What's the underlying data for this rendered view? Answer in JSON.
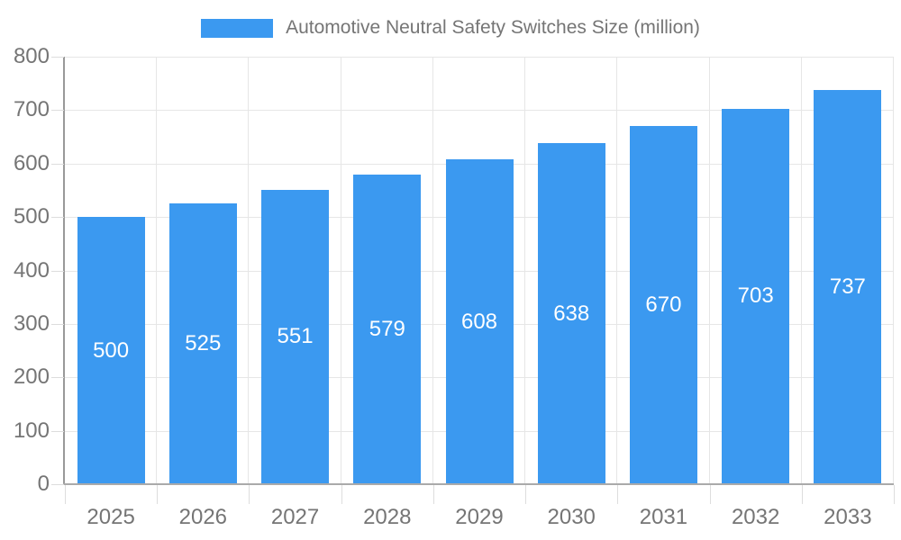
{
  "legend": {
    "label": "Automotive Neutral Safety Switches Size (million)"
  },
  "colors": {
    "bar": "#3b99f0",
    "legend_swatch": "#3b99f0",
    "axis_text": "#757575",
    "value_label_text": "#ffffff",
    "gridline": "#e6e6e6",
    "axis_line": "#999999"
  },
  "chart_data": {
    "type": "bar",
    "title": "Automotive Neutral Safety Switches Size (million)",
    "categories": [
      "2025",
      "2026",
      "2027",
      "2028",
      "2029",
      "2030",
      "2031",
      "2032",
      "2033"
    ],
    "values": [
      500,
      525,
      551,
      579,
      608,
      638,
      670,
      703,
      737
    ],
    "xlabel": "",
    "ylabel": "",
    "ylim": [
      0,
      800
    ],
    "ytick_step": 100,
    "ytick_labels": [
      "0",
      "100",
      "200",
      "300",
      "400",
      "500",
      "600",
      "700",
      "800"
    ],
    "grid": true,
    "legend_position": "top-center",
    "value_labels": "inside-center"
  }
}
